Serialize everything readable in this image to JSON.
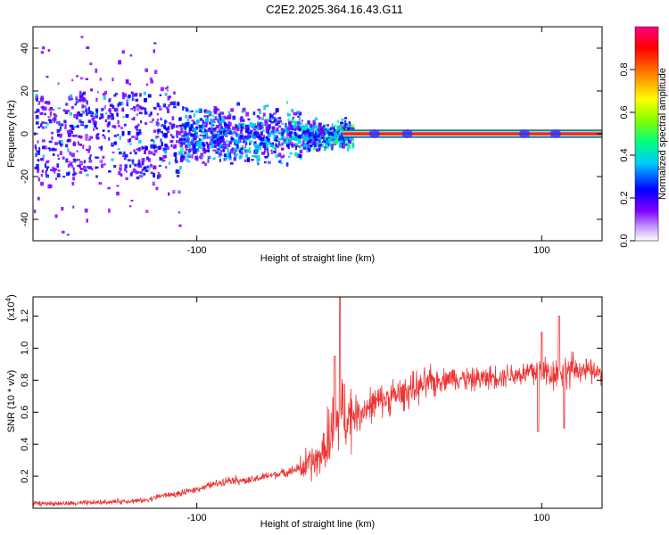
{
  "title": "C2E2.2025.364.16.43.G11",
  "colors": {
    "snr_line": "#ee3333",
    "axis": "#000000"
  },
  "chart_data": [
    {
      "type": "heatmap",
      "name": "spectrogram",
      "xlabel": "Height of straight line (km)",
      "ylabel": "Frequency (Hz)",
      "xlim": [
        -195,
        135
      ],
      "ylim": [
        -50,
        50
      ],
      "x_ticks": [
        -100,
        100
      ],
      "y_ticks": [
        -40,
        -20,
        0,
        20,
        40
      ],
      "tone_band": {
        "x_start": -15,
        "x_end": 135,
        "freq": 0,
        "description": "strong carrier line"
      },
      "colorbar": {
        "label": "Normalized spectral amplitude",
        "range": [
          0,
          1
        ],
        "ticks": [
          0.0,
          0.2,
          0.4,
          0.6,
          0.8
        ],
        "tick_labels": [
          "0.0",
          "0.2",
          "0.4",
          "0.6",
          "0.8"
        ],
        "colormap": [
          "#ffffff",
          "#8000ff",
          "#0000ff",
          "#00c0ff",
          "#00ff80",
          "#80ff00",
          "#ffff00",
          "#ff8000",
          "#ff0000",
          "#ff0080"
        ]
      }
    },
    {
      "type": "line",
      "name": "snr",
      "xlabel": "Height of straight line (km)",
      "ylabel": "SNR (10 * v/v)",
      "y_multiplier": "(x10",
      "y_multiplier_exp": "4",
      "y_multiplier_close": ")",
      "xlim": [
        -195,
        135
      ],
      "ylim": [
        0,
        1.32
      ],
      "x_ticks": [
        -100,
        100
      ],
      "y_ticks": [
        0.2,
        0.4,
        0.6,
        0.8,
        1.0,
        1.2
      ],
      "y_tick_labels": [
        "0.2",
        "0.4",
        "0.6",
        "0.8",
        "1.0",
        "1.2"
      ],
      "x": [
        -195,
        -170,
        -150,
        -130,
        -120,
        -110,
        -100,
        -90,
        -80,
        -70,
        -60,
        -50,
        -40,
        -30,
        -25,
        -20,
        -15,
        -10,
        -5,
        0,
        10,
        20,
        30,
        40,
        50,
        60,
        70,
        80,
        90,
        95,
        100,
        105,
        110,
        115,
        120,
        125,
        130,
        135
      ],
      "y": [
        0.03,
        0.03,
        0.04,
        0.05,
        0.08,
        0.09,
        0.12,
        0.15,
        0.18,
        0.17,
        0.2,
        0.22,
        0.25,
        0.3,
        0.38,
        0.5,
        0.6,
        0.58,
        0.6,
        0.64,
        0.68,
        0.72,
        0.76,
        0.8,
        0.82,
        0.8,
        0.82,
        0.83,
        0.84,
        0.85,
        0.86,
        0.84,
        0.85,
        0.86,
        0.87,
        0.86,
        0.85,
        0.84
      ],
      "spikes": [
        {
          "x": -17,
          "y": 1.32
        },
        {
          "x": -20,
          "y": 0.95
        },
        {
          "x": 98,
          "y": 0.48
        },
        {
          "x": 100,
          "y": 1.1
        },
        {
          "x": 110,
          "y": 1.2
        },
        {
          "x": 113,
          "y": 0.5
        }
      ]
    }
  ]
}
